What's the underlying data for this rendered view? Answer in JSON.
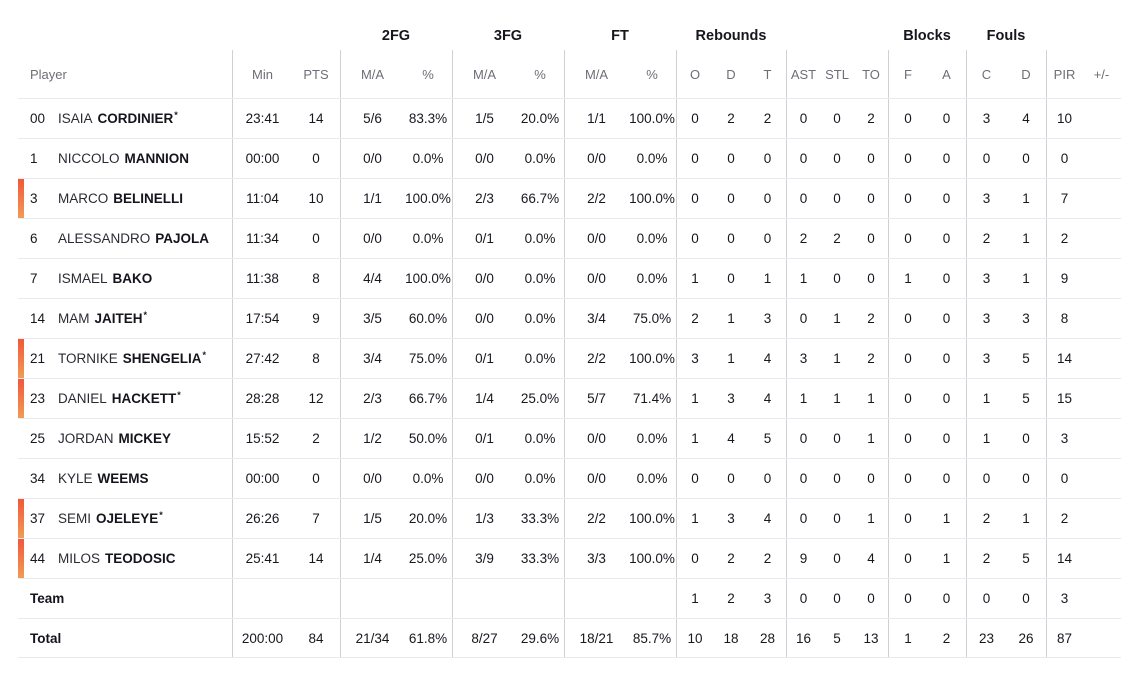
{
  "colors": {
    "accent_bar_top": "#f1583a",
    "accent_bar_bottom": "#f29a55",
    "header_text": "#6e6e77",
    "body_text": "#17171f",
    "group_divider": "#cfd0d5",
    "row_separator": "#eaeaee"
  },
  "table": {
    "group_headers": {
      "fg2": "2FG",
      "fg3": "3FG",
      "ft": "FT",
      "rebounds": "Rebounds",
      "blocks": "Blocks",
      "fouls": "Fouls"
    },
    "column_headers": {
      "player": "Player",
      "min": "Min",
      "pts": "PTS",
      "fg2_ma": "M/A",
      "fg2_pct": "%",
      "fg3_ma": "M/A",
      "fg3_pct": "%",
      "ft_ma": "M/A",
      "ft_pct": "%",
      "reb_o": "O",
      "reb_d": "D",
      "reb_t": "T",
      "ast": "AST",
      "stl": "STL",
      "to": "TO",
      "blk_f": "F",
      "blk_a": "A",
      "foul_c": "C",
      "foul_d": "D",
      "pir": "PIR",
      "plus_minus": "+/-"
    },
    "starter_mark": "*",
    "rows": [
      {
        "type": "player",
        "number": "00",
        "first": "ISAIA",
        "last": "CORDINIER",
        "starter": true,
        "on_court": false,
        "cells": [
          "23:41",
          "14",
          "5/6",
          "83.3%",
          "1/5",
          "20.0%",
          "1/1",
          "100.0%",
          "0",
          "2",
          "2",
          "0",
          "0",
          "2",
          "0",
          "0",
          "3",
          "4",
          "10",
          ""
        ]
      },
      {
        "type": "player",
        "number": "1",
        "first": "NICCOLO",
        "last": "MANNION",
        "starter": false,
        "on_court": false,
        "cells": [
          "00:00",
          "0",
          "0/0",
          "0.0%",
          "0/0",
          "0.0%",
          "0/0",
          "0.0%",
          "0",
          "0",
          "0",
          "0",
          "0",
          "0",
          "0",
          "0",
          "0",
          "0",
          "0",
          ""
        ]
      },
      {
        "type": "player",
        "number": "3",
        "first": "MARCO",
        "last": "BELINELLI",
        "starter": false,
        "on_court": true,
        "cells": [
          "11:04",
          "10",
          "1/1",
          "100.0%",
          "2/3",
          "66.7%",
          "2/2",
          "100.0%",
          "0",
          "0",
          "0",
          "0",
          "0",
          "0",
          "0",
          "0",
          "3",
          "1",
          "7",
          ""
        ]
      },
      {
        "type": "player",
        "number": "6",
        "first": "ALESSANDRO",
        "last": "PAJOLA",
        "starter": false,
        "on_court": false,
        "cells": [
          "11:34",
          "0",
          "0/0",
          "0.0%",
          "0/1",
          "0.0%",
          "0/0",
          "0.0%",
          "0",
          "0",
          "0",
          "2",
          "2",
          "0",
          "0",
          "0",
          "2",
          "1",
          "2",
          ""
        ]
      },
      {
        "type": "player",
        "number": "7",
        "first": "ISMAEL",
        "last": "BAKO",
        "starter": false,
        "on_court": false,
        "cells": [
          "11:38",
          "8",
          "4/4",
          "100.0%",
          "0/0",
          "0.0%",
          "0/0",
          "0.0%",
          "1",
          "0",
          "1",
          "1",
          "0",
          "0",
          "1",
          "0",
          "3",
          "1",
          "9",
          ""
        ]
      },
      {
        "type": "player",
        "number": "14",
        "first": "MAM",
        "last": "JAITEH",
        "starter": true,
        "on_court": false,
        "cells": [
          "17:54",
          "9",
          "3/5",
          "60.0%",
          "0/0",
          "0.0%",
          "3/4",
          "75.0%",
          "2",
          "1",
          "3",
          "0",
          "1",
          "2",
          "0",
          "0",
          "3",
          "3",
          "8",
          ""
        ]
      },
      {
        "type": "player",
        "number": "21",
        "first": "TORNIKE",
        "last": "SHENGELIA",
        "starter": true,
        "on_court": true,
        "cells": [
          "27:42",
          "8",
          "3/4",
          "75.0%",
          "0/1",
          "0.0%",
          "2/2",
          "100.0%",
          "3",
          "1",
          "4",
          "3",
          "1",
          "2",
          "0",
          "0",
          "3",
          "5",
          "14",
          ""
        ]
      },
      {
        "type": "player",
        "number": "23",
        "first": "DANIEL",
        "last": "HACKETT",
        "starter": true,
        "on_court": true,
        "cells": [
          "28:28",
          "12",
          "2/3",
          "66.7%",
          "1/4",
          "25.0%",
          "5/7",
          "71.4%",
          "1",
          "3",
          "4",
          "1",
          "1",
          "1",
          "0",
          "0",
          "1",
          "5",
          "15",
          ""
        ]
      },
      {
        "type": "player",
        "number": "25",
        "first": "JORDAN",
        "last": "MICKEY",
        "starter": false,
        "on_court": false,
        "cells": [
          "15:52",
          "2",
          "1/2",
          "50.0%",
          "0/1",
          "0.0%",
          "0/0",
          "0.0%",
          "1",
          "4",
          "5",
          "0",
          "0",
          "1",
          "0",
          "0",
          "1",
          "0",
          "3",
          ""
        ]
      },
      {
        "type": "player",
        "number": "34",
        "first": "KYLE",
        "last": "WEEMS",
        "starter": false,
        "on_court": false,
        "cells": [
          "00:00",
          "0",
          "0/0",
          "0.0%",
          "0/0",
          "0.0%",
          "0/0",
          "0.0%",
          "0",
          "0",
          "0",
          "0",
          "0",
          "0",
          "0",
          "0",
          "0",
          "0",
          "0",
          ""
        ]
      },
      {
        "type": "player",
        "number": "37",
        "first": "SEMI",
        "last": "OJELEYE",
        "starter": true,
        "on_court": true,
        "cells": [
          "26:26",
          "7",
          "1/5",
          "20.0%",
          "1/3",
          "33.3%",
          "2/2",
          "100.0%",
          "1",
          "3",
          "4",
          "0",
          "0",
          "1",
          "0",
          "1",
          "2",
          "1",
          "2",
          ""
        ]
      },
      {
        "type": "player",
        "number": "44",
        "first": "MILOS",
        "last": "TEODOSIC",
        "starter": false,
        "on_court": true,
        "cells": [
          "25:41",
          "14",
          "1/4",
          "25.0%",
          "3/9",
          "33.3%",
          "3/3",
          "100.0%",
          "0",
          "2",
          "2",
          "9",
          "0",
          "4",
          "0",
          "1",
          "2",
          "5",
          "14",
          ""
        ]
      },
      {
        "type": "team",
        "label": "Team",
        "cells": [
          "",
          "",
          "",
          "",
          "",
          "",
          "",
          "",
          "1",
          "2",
          "3",
          "0",
          "0",
          "0",
          "0",
          "0",
          "0",
          "0",
          "3",
          ""
        ]
      },
      {
        "type": "total",
        "label": "Total",
        "cells": [
          "200:00",
          "84",
          "21/34",
          "61.8%",
          "8/27",
          "29.6%",
          "18/21",
          "85.7%",
          "10",
          "18",
          "28",
          "16",
          "5",
          "13",
          "1",
          "2",
          "23",
          "26",
          "87",
          ""
        ]
      }
    ]
  }
}
